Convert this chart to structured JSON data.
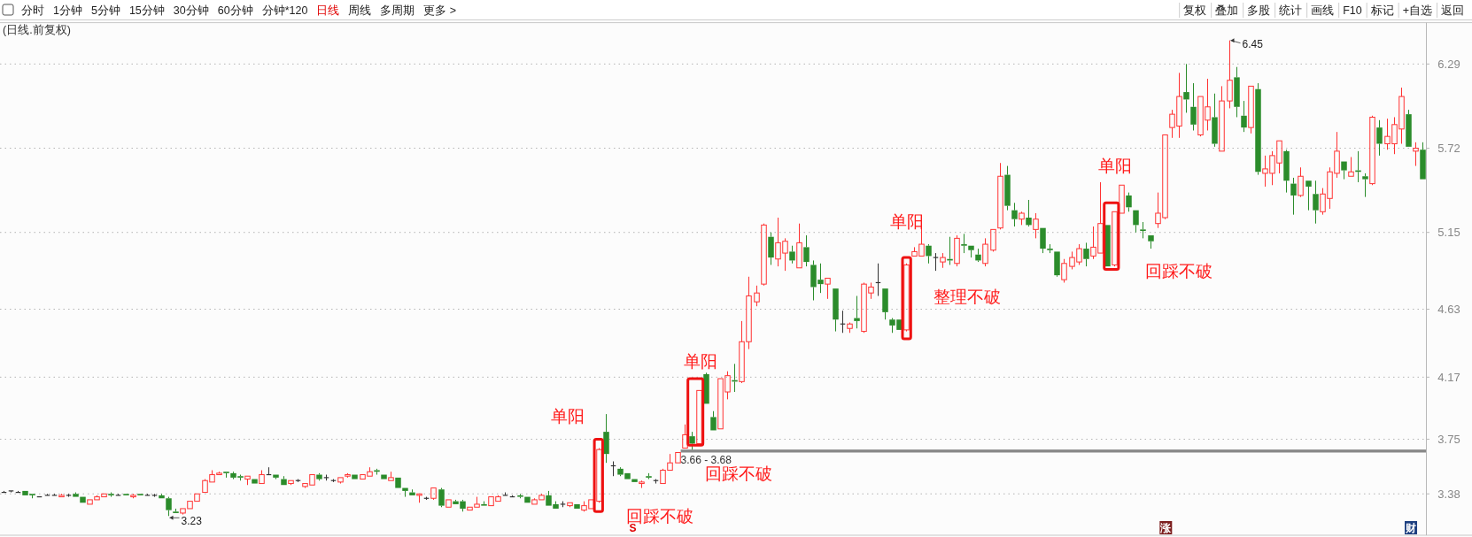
{
  "chart_data": {
    "type": "candlestick",
    "title": "(日线.前复权)",
    "categories": [
      null,
      null,
      null,
      null,
      null,
      null,
      null,
      null,
      null,
      null,
      null,
      null,
      null,
      null,
      null,
      null,
      null,
      null,
      null,
      null,
      null,
      null,
      null,
      null,
      null,
      null,
      null,
      null,
      null,
      null,
      null,
      null,
      null,
      null,
      null,
      null,
      null,
      null,
      null,
      null,
      null,
      null,
      null,
      null,
      null,
      null,
      null,
      null,
      null,
      null,
      null,
      null,
      null,
      null,
      null,
      null,
      null,
      null,
      null,
      null,
      null,
      null,
      null,
      null,
      null,
      null,
      null,
      null,
      null,
      null,
      null,
      null,
      null,
      null,
      null,
      null,
      null,
      null,
      null,
      null,
      null,
      null,
      null,
      null,
      null,
      null,
      null,
      null,
      null,
      null,
      null,
      null,
      null,
      null,
      null,
      null,
      null,
      null,
      null,
      null,
      null,
      null,
      null,
      null,
      null,
      null,
      null,
      null,
      null,
      null,
      null,
      null,
      null,
      null,
      null,
      null,
      null,
      null,
      null,
      null,
      null,
      null,
      null,
      null,
      null,
      null,
      null,
      null,
      null,
      null,
      null,
      null,
      null,
      null,
      null,
      null,
      null,
      null,
      null,
      null,
      null,
      null,
      null,
      null,
      null,
      null,
      null,
      null,
      null,
      null,
      null,
      null,
      null,
      null,
      null,
      null,
      null,
      null,
      null,
      null,
      null,
      null,
      null,
      null,
      null,
      null,
      null,
      null,
      null,
      null,
      null,
      null,
      null,
      null,
      null,
      null,
      null,
      null,
      null,
      null,
      null,
      null,
      null,
      null,
      null,
      null,
      null,
      null,
      null,
      null,
      null,
      null,
      null,
      null,
      null,
      null,
      null,
      null,
      null
    ],
    "ohlc": [
      [
        3.39,
        3.4,
        3.39,
        3.39
      ],
      [
        3.4,
        3.4,
        3.39,
        3.4
      ],
      [
        3.39,
        3.4,
        3.39,
        3.39
      ],
      [
        3.4,
        3.4,
        3.37,
        3.37
      ],
      [
        3.38,
        3.38,
        3.35,
        3.37
      ],
      [
        3.36,
        3.36,
        3.36,
        3.36
      ],
      [
        3.37,
        3.38,
        3.37,
        3.37
      ],
      [
        3.37,
        3.38,
        3.37,
        3.37
      ],
      [
        3.36,
        3.38,
        3.36,
        3.37
      ],
      [
        3.37,
        3.38,
        3.36,
        3.37
      ],
      [
        3.38,
        3.39,
        3.36,
        3.36
      ],
      [
        3.36,
        3.36,
        3.32,
        3.32
      ],
      [
        3.31,
        3.34,
        3.31,
        3.34
      ],
      [
        3.34,
        3.37,
        3.34,
        3.36
      ],
      [
        3.36,
        3.38,
        3.36,
        3.38
      ],
      [
        3.38,
        3.39,
        3.36,
        3.37
      ],
      [
        3.37,
        3.38,
        3.37,
        3.37
      ],
      [
        3.38,
        3.38,
        3.37,
        3.37
      ],
      [
        3.36,
        3.38,
        3.35,
        3.37
      ],
      [
        3.38,
        3.38,
        3.37,
        3.37
      ],
      [
        3.37,
        3.38,
        3.37,
        3.37
      ],
      [
        3.37,
        3.38,
        3.36,
        3.37
      ],
      [
        3.37,
        3.38,
        3.35,
        3.35
      ],
      [
        3.35,
        3.36,
        3.23,
        3.27
      ],
      [
        3.26,
        3.28,
        3.25,
        3.25
      ],
      [
        3.25,
        3.28,
        3.24,
        3.28
      ],
      [
        3.28,
        3.33,
        3.28,
        3.33
      ],
      [
        3.33,
        3.38,
        3.33,
        3.38
      ],
      [
        3.39,
        3.48,
        3.39,
        3.47
      ],
      [
        3.46,
        3.54,
        3.46,
        3.51
      ],
      [
        3.51,
        3.53,
        3.51,
        3.52
      ],
      [
        3.53,
        3.53,
        3.49,
        3.52
      ],
      [
        3.52,
        3.53,
        3.48,
        3.49
      ],
      [
        3.5,
        3.51,
        3.47,
        3.49
      ],
      [
        3.48,
        3.5,
        3.44,
        3.5
      ],
      [
        3.48,
        3.48,
        3.45,
        3.45
      ],
      [
        3.45,
        3.54,
        3.45,
        3.51
      ],
      [
        3.51,
        3.56,
        3.51,
        3.51
      ],
      [
        3.51,
        3.51,
        3.48,
        3.49
      ],
      [
        3.48,
        3.5,
        3.44,
        3.44
      ],
      [
        3.45,
        3.47,
        3.44,
        3.47
      ],
      [
        3.47,
        3.48,
        3.46,
        3.47
      ],
      [
        3.43,
        3.45,
        3.42,
        3.45
      ],
      [
        3.44,
        3.51,
        3.44,
        3.51
      ],
      [
        3.51,
        3.52,
        3.47,
        3.48
      ],
      [
        3.49,
        3.51,
        3.47,
        3.49
      ],
      [
        3.47,
        3.48,
        3.46,
        3.47
      ],
      [
        3.46,
        3.49,
        3.45,
        3.49
      ],
      [
        3.5,
        3.52,
        3.49,
        3.51
      ],
      [
        3.51,
        3.51,
        3.48,
        3.48
      ],
      [
        3.48,
        3.51,
        3.48,
        3.51
      ],
      [
        3.5,
        3.56,
        3.5,
        3.53
      ],
      [
        3.54,
        3.55,
        3.51,
        3.53
      ],
      [
        3.51,
        3.51,
        3.48,
        3.48
      ],
      [
        3.47,
        3.53,
        3.47,
        3.49
      ],
      [
        3.49,
        3.49,
        3.42,
        3.42
      ],
      [
        3.42,
        3.42,
        3.36,
        3.4
      ],
      [
        3.39,
        3.41,
        3.37,
        3.37
      ],
      [
        3.37,
        3.38,
        3.32,
        3.38
      ],
      [
        3.35,
        3.36,
        3.34,
        3.35
      ],
      [
        3.35,
        3.42,
        3.34,
        3.42
      ],
      [
        3.41,
        3.42,
        3.29,
        3.3
      ],
      [
        3.29,
        3.34,
        3.29,
        3.34
      ],
      [
        3.33,
        3.34,
        3.31,
        3.31
      ],
      [
        3.33,
        3.34,
        3.26,
        3.28
      ],
      [
        3.27,
        3.29,
        3.27,
        3.29
      ],
      [
        3.29,
        3.36,
        3.29,
        3.31
      ],
      [
        3.31,
        3.33,
        3.3,
        3.3
      ],
      [
        3.3,
        3.36,
        3.3,
        3.36
      ],
      [
        3.33,
        3.37,
        3.33,
        3.36
      ],
      [
        3.37,
        3.39,
        3.37,
        3.37
      ],
      [
        3.36,
        3.37,
        3.36,
        3.36
      ],
      [
        3.37,
        3.38,
        3.35,
        3.36
      ],
      [
        3.36,
        3.36,
        3.32,
        3.32
      ],
      [
        3.31,
        3.35,
        3.31,
        3.34
      ],
      [
        3.34,
        3.38,
        3.34,
        3.37
      ],
      [
        3.37,
        3.4,
        3.3,
        3.3
      ],
      [
        3.31,
        3.33,
        3.28,
        3.28
      ],
      [
        3.31,
        3.33,
        3.29,
        3.31
      ],
      [
        3.3,
        3.32,
        3.29,
        3.32
      ],
      [
        3.31,
        3.31,
        3.28,
        3.28
      ],
      [
        3.27,
        3.33,
        3.26,
        3.3
      ],
      [
        3.28,
        3.34,
        3.28,
        3.34
      ],
      [
        3.33,
        3.69,
        3.32,
        3.68
      ],
      [
        3.8,
        3.92,
        3.59,
        3.65
      ],
      [
        3.57,
        3.6,
        3.5,
        3.57
      ],
      [
        3.55,
        3.56,
        3.5,
        3.51
      ],
      [
        3.52,
        3.52,
        3.48,
        3.48
      ],
      [
        3.48,
        3.48,
        3.46,
        3.46
      ],
      [
        3.45,
        3.47,
        3.42,
        3.46
      ],
      [
        3.5,
        3.52,
        3.48,
        3.49
      ],
      [
        3.47,
        3.48,
        3.45,
        3.47
      ],
      [
        3.45,
        3.55,
        3.45,
        3.54
      ],
      [
        3.54,
        3.65,
        3.54,
        3.59
      ],
      [
        3.59,
        3.66,
        3.59,
        3.66
      ],
      [
        3.69,
        3.85,
        3.69,
        3.78
      ],
      [
        3.77,
        3.8,
        3.68,
        3.72
      ],
      [
        3.72,
        4.08,
        3.71,
        4.08
      ],
      [
        4.19,
        4.2,
        3.99,
        3.99
      ],
      [
        3.9,
        3.94,
        3.81,
        3.81
      ],
      [
        3.82,
        4.16,
        3.82,
        4.16
      ],
      [
        4.07,
        4.21,
        4.02,
        4.18
      ],
      [
        4.15,
        4.26,
        4.07,
        4.14
      ],
      [
        4.14,
        4.55,
        4.13,
        4.41
      ],
      [
        4.41,
        4.85,
        4.36,
        4.72
      ],
      [
        4.68,
        4.79,
        4.65,
        4.74
      ],
      [
        4.8,
        5.21,
        4.79,
        5.2
      ],
      [
        5.12,
        5.15,
        4.93,
        4.98
      ],
      [
        4.97,
        5.25,
        4.92,
        5.08
      ],
      [
        5.01,
        5.11,
        4.89,
        5.09
      ],
      [
        5.02,
        5.06,
        4.94,
        4.96
      ],
      [
        4.91,
        5.21,
        4.91,
        5.08
      ],
      [
        5.05,
        5.13,
        4.92,
        4.95
      ],
      [
        4.93,
        4.96,
        4.69,
        4.78
      ],
      [
        4.83,
        4.94,
        4.74,
        4.8
      ],
      [
        4.8,
        4.84,
        4.7,
        4.84
      ],
      [
        4.77,
        4.77,
        4.48,
        4.56
      ],
      [
        4.53,
        4.62,
        4.47,
        4.53
      ],
      [
        4.5,
        4.54,
        4.47,
        4.53
      ],
      [
        4.57,
        4.72,
        4.5,
        4.55
      ],
      [
        4.48,
        4.81,
        4.47,
        4.8
      ],
      [
        4.74,
        4.81,
        4.7,
        4.78
      ],
      [
        4.81,
        4.94,
        4.72,
        4.81
      ],
      [
        4.77,
        4.77,
        4.56,
        4.61
      ],
      [
        4.56,
        4.57,
        4.47,
        4.52
      ],
      [
        4.56,
        4.56,
        4.49,
        4.49
      ],
      [
        4.49,
        4.94,
        4.48,
        4.93
      ],
      [
        4.99,
        5.05,
        4.99,
        5.02
      ],
      [
        4.99,
        5.21,
        4.99,
        5.07
      ],
      [
        5.06,
        5.07,
        4.94,
        4.99
      ],
      [
        4.98,
        5.01,
        4.89,
        4.98
      ],
      [
        4.95,
        5.01,
        4.91,
        4.98
      ],
      [
        4.97,
        5.12,
        4.93,
        4.96
      ],
      [
        4.94,
        5.13,
        4.92,
        5.11
      ],
      [
        5.07,
        5.14,
        5.01,
        5.06
      ],
      [
        5.06,
        5.06,
        4.98,
        5.03
      ],
      [
        5.0,
        5.04,
        4.95,
        4.96
      ],
      [
        4.94,
        5.11,
        4.92,
        5.07
      ],
      [
        5.03,
        5.17,
        5.02,
        5.17
      ],
      [
        5.18,
        5.62,
        5.17,
        5.53
      ],
      [
        5.54,
        5.6,
        5.3,
        5.33
      ],
      [
        5.3,
        5.35,
        5.19,
        5.24
      ],
      [
        5.24,
        5.29,
        5.2,
        5.28
      ],
      [
        5.25,
        5.37,
        5.19,
        5.2
      ],
      [
        5.17,
        5.28,
        5.11,
        5.24
      ],
      [
        5.18,
        5.18,
        5.01,
        5.04
      ],
      [
        5.04,
        5.07,
        5.01,
        5.03
      ],
      [
        5.02,
        5.02,
        4.85,
        4.86
      ],
      [
        4.83,
        4.97,
        4.81,
        4.94
      ],
      [
        4.92,
        5.02,
        4.9,
        4.98
      ],
      [
        4.95,
        5.07,
        4.93,
        5.04
      ],
      [
        5.04,
        5.08,
        4.92,
        4.97
      ],
      [
        4.99,
        5.19,
        4.97,
        5.05
      ],
      [
        5.01,
        5.49,
        5.01,
        5.21
      ],
      [
        5.2,
        5.2,
        4.92,
        4.92
      ],
      [
        4.93,
        5.29,
        4.92,
        5.29
      ],
      [
        5.28,
        5.47,
        5.28,
        5.47
      ],
      [
        5.4,
        5.42,
        5.29,
        5.32
      ],
      [
        5.3,
        5.3,
        5.15,
        5.2
      ],
      [
        5.17,
        5.22,
        5.11,
        5.16
      ],
      [
        5.13,
        5.13,
        5.04,
        5.09
      ],
      [
        5.21,
        5.42,
        5.18,
        5.28
      ],
      [
        5.25,
        5.81,
        5.24,
        5.81
      ],
      [
        5.86,
        5.98,
        5.79,
        5.95
      ],
      [
        5.87,
        6.23,
        5.79,
        6.07
      ],
      [
        6.1,
        6.29,
        5.96,
        6.05
      ],
      [
        6.0,
        6.16,
        5.84,
        5.88
      ],
      [
        5.81,
        6.07,
        5.8,
        6.07
      ],
      [
        5.91,
        6.19,
        5.84,
        6.0
      ],
      [
        5.93,
        6.09,
        5.73,
        5.75
      ],
      [
        5.7,
        6.14,
        5.7,
        6.04
      ],
      [
        6.04,
        6.45,
        5.99,
        6.18
      ],
      [
        6.2,
        6.27,
        5.93,
        6.0
      ],
      [
        5.94,
        6.04,
        5.83,
        5.86
      ],
      [
        5.86,
        6.14,
        5.82,
        6.14
      ],
      [
        6.12,
        6.16,
        5.54,
        5.56
      ],
      [
        5.55,
        5.67,
        5.46,
        5.58
      ],
      [
        5.55,
        5.7,
        5.47,
        5.67
      ],
      [
        5.62,
        5.77,
        5.55,
        5.77
      ],
      [
        5.7,
        5.71,
        5.42,
        5.5
      ],
      [
        5.48,
        5.52,
        5.27,
        5.4
      ],
      [
        5.4,
        5.59,
        5.39,
        5.53
      ],
      [
        5.5,
        5.5,
        5.3,
        5.46
      ],
      [
        5.41,
        5.5,
        5.21,
        5.3
      ],
      [
        5.29,
        5.45,
        5.27,
        5.41
      ],
      [
        5.38,
        5.59,
        5.31,
        5.56
      ],
      [
        5.55,
        5.83,
        5.52,
        5.7
      ],
      [
        5.63,
        5.63,
        5.51,
        5.57
      ],
      [
        5.53,
        5.66,
        5.53,
        5.56
      ],
      [
        5.57,
        5.7,
        5.49,
        5.56
      ],
      [
        5.53,
        5.55,
        5.39,
        5.51
      ],
      [
        5.48,
        5.94,
        5.47,
        5.93
      ],
      [
        5.86,
        5.91,
        5.67,
        5.75
      ],
      [
        5.75,
        5.92,
        5.71,
        5.8
      ],
      [
        5.75,
        5.93,
        5.68,
        5.88
      ],
      [
        5.85,
        6.13,
        5.75,
        6.07
      ],
      [
        5.95,
        5.98,
        5.73,
        5.73
      ],
      [
        5.7,
        5.76,
        5.6,
        5.72
      ],
      [
        5.71,
        5.76,
        5.51,
        5.51
      ]
    ],
    "ylim": [
      3.1,
      6.57
    ],
    "yticks": [
      3.38,
      3.75,
      4.17,
      4.63,
      5.15,
      5.72,
      6.29
    ],
    "grid": "y",
    "bands": [
      {
        "axis": "y",
        "from": 3.66,
        "to": 3.68,
        "label": "3.66 - 3.68",
        "color": "#888888"
      }
    ],
    "annotations": [
      "分时",
      "1分钟",
      "5分钟",
      "15分钟",
      "30分钟",
      "60分钟",
      "分钟*120",
      "日线",
      "周线",
      "多周期",
      "更多 >",
      "复权",
      "叠加",
      "多股",
      "统计",
      "画线",
      "F10",
      "标记",
      "+自选",
      "返回",
      "单阳",
      "回踩不破",
      "单阳",
      "回踩不破",
      "单阳",
      "整理不破",
      "单阳",
      "回踩不破",
      "3.23",
      "6.45",
      "S",
      "涨",
      "财"
    ]
  }
}
